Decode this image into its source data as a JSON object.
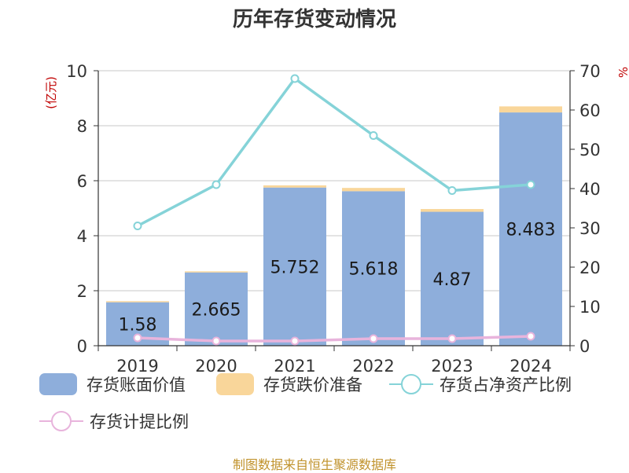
{
  "title": "历年存货变动情况",
  "source": "制图数据来自恒生聚源数据库",
  "colors": {
    "book_value": "#8eaedb",
    "provision": "#f9d69a",
    "ratio_net_assets": "#85d3d8",
    "provision_ratio": "#e8b4dc",
    "axis": "#333333",
    "grid": "#c8c8c8",
    "unit": "#c00000"
  },
  "chart_data": {
    "type": "bar",
    "title": "历年存货变动情况",
    "categories": [
      "2019",
      "2020",
      "2021",
      "2022",
      "2023",
      "2024"
    ],
    "y_left": {
      "label": "(亿元)",
      "lim": [
        0,
        10
      ],
      "ticks": [
        0,
        2,
        4,
        6,
        8,
        10
      ]
    },
    "y_right": {
      "label": "%",
      "lim": [
        0,
        70
      ],
      "ticks": [
        0,
        10,
        20,
        30,
        40,
        50,
        60,
        70
      ]
    },
    "grid": true,
    "legend_position": "bottom",
    "series": [
      {
        "name": "存货账面价值",
        "type": "bar",
        "axis": "left",
        "stack": "inventory",
        "values": [
          1.58,
          2.665,
          5.752,
          5.618,
          4.87,
          8.483
        ],
        "labels": [
          "1.58",
          "2.665",
          "5.752",
          "5.618",
          "4.87",
          "8.483"
        ]
      },
      {
        "name": "存货跌价准备",
        "type": "bar",
        "axis": "left",
        "stack": "inventory",
        "values": [
          0.04,
          0.04,
          0.08,
          0.12,
          0.1,
          0.22
        ]
      },
      {
        "name": "存货占净资产比例",
        "type": "line",
        "axis": "right",
        "values": [
          30.5,
          41,
          68,
          53.5,
          39.5,
          41
        ]
      },
      {
        "name": "存货计提比例",
        "type": "line",
        "axis": "right",
        "values": [
          2,
          1.2,
          1.2,
          1.8,
          1.8,
          2.4
        ]
      }
    ]
  }
}
